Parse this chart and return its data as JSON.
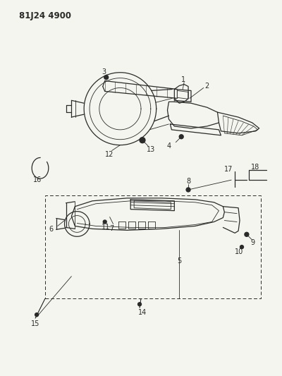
{
  "title": "81J24 4900",
  "bg_color": "#f5f5f0",
  "line_color": "#2a2a2a",
  "fig_width": 4.0,
  "fig_height": 5.33,
  "dpi": 100
}
